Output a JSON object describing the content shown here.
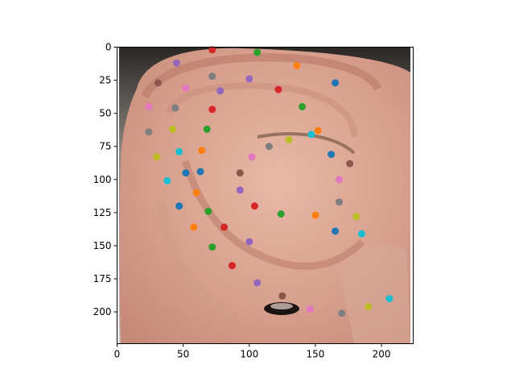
{
  "chart_data": {
    "type": "scatter",
    "background_image": "ear-closeup-photo",
    "xlim": [
      0,
      224
    ],
    "ylim": [
      224,
      0
    ],
    "y_inverted": true,
    "x_ticks": [
      0,
      50,
      100,
      150,
      200
    ],
    "y_ticks": [
      0,
      25,
      50,
      75,
      100,
      125,
      150,
      175,
      200
    ],
    "grid": false,
    "palette": [
      "#1f77b4",
      "#ff7f0e",
      "#2ca02c",
      "#d62728",
      "#9467bd",
      "#8c564b",
      "#e377c2",
      "#7f7f7f",
      "#bcbd22",
      "#17becf"
    ],
    "points": [
      {
        "x": 72,
        "y": 2,
        "color": "#d62728"
      },
      {
        "x": 106,
        "y": 4,
        "color": "#2ca02c"
      },
      {
        "x": 136,
        "y": 14,
        "color": "#ff7f0e"
      },
      {
        "x": 45,
        "y": 12,
        "color": "#9467bd"
      },
      {
        "x": 31,
        "y": 27,
        "color": "#8c564b"
      },
      {
        "x": 72,
        "y": 22,
        "color": "#7f7f7f"
      },
      {
        "x": 100,
        "y": 24,
        "color": "#9467bd"
      },
      {
        "x": 52,
        "y": 31,
        "color": "#e377c2"
      },
      {
        "x": 78,
        "y": 33,
        "color": "#9467bd"
      },
      {
        "x": 122,
        "y": 32,
        "color": "#d62728"
      },
      {
        "x": 165,
        "y": 27,
        "color": "#1f77b4"
      },
      {
        "x": 24,
        "y": 45,
        "color": "#e377c2"
      },
      {
        "x": 44,
        "y": 46,
        "color": "#7f7f7f"
      },
      {
        "x": 72,
        "y": 47,
        "color": "#d62728"
      },
      {
        "x": 140,
        "y": 45,
        "color": "#2ca02c"
      },
      {
        "x": 24,
        "y": 64,
        "color": "#7f7f7f"
      },
      {
        "x": 42,
        "y": 62,
        "color": "#bcbd22"
      },
      {
        "x": 68,
        "y": 62,
        "color": "#2ca02c"
      },
      {
        "x": 152,
        "y": 63,
        "color": "#ff7f0e"
      },
      {
        "x": 130,
        "y": 70,
        "color": "#bcbd22"
      },
      {
        "x": 147,
        "y": 66,
        "color": "#17becf"
      },
      {
        "x": 47,
        "y": 79,
        "color": "#17becf"
      },
      {
        "x": 64,
        "y": 78,
        "color": "#ff7f0e"
      },
      {
        "x": 115,
        "y": 75,
        "color": "#7f7f7f"
      },
      {
        "x": 30,
        "y": 83,
        "color": "#bcbd22"
      },
      {
        "x": 102,
        "y": 83,
        "color": "#e377c2"
      },
      {
        "x": 162,
        "y": 81,
        "color": "#1f77b4"
      },
      {
        "x": 176,
        "y": 88,
        "color": "#8c564b"
      },
      {
        "x": 52,
        "y": 95,
        "color": "#1f77b4"
      },
      {
        "x": 63,
        "y": 94,
        "color": "#1f77b4"
      },
      {
        "x": 93,
        "y": 95,
        "color": "#8c564b"
      },
      {
        "x": 38,
        "y": 101,
        "color": "#17becf"
      },
      {
        "x": 168,
        "y": 100,
        "color": "#e377c2"
      },
      {
        "x": 60,
        "y": 110,
        "color": "#ff7f0e"
      },
      {
        "x": 93,
        "y": 108,
        "color": "#9467bd"
      },
      {
        "x": 47,
        "y": 120,
        "color": "#1f77b4"
      },
      {
        "x": 69,
        "y": 124,
        "color": "#2ca02c"
      },
      {
        "x": 104,
        "y": 120,
        "color": "#d62728"
      },
      {
        "x": 168,
        "y": 117,
        "color": "#7f7f7f"
      },
      {
        "x": 124,
        "y": 126,
        "color": "#2ca02c"
      },
      {
        "x": 150,
        "y": 127,
        "color": "#ff7f0e"
      },
      {
        "x": 181,
        "y": 128,
        "color": "#bcbd22"
      },
      {
        "x": 58,
        "y": 136,
        "color": "#ff7f0e"
      },
      {
        "x": 81,
        "y": 136,
        "color": "#d62728"
      },
      {
        "x": 165,
        "y": 139,
        "color": "#1f77b4"
      },
      {
        "x": 185,
        "y": 141,
        "color": "#17becf"
      },
      {
        "x": 100,
        "y": 147,
        "color": "#9467bd"
      },
      {
        "x": 72,
        "y": 151,
        "color": "#2ca02c"
      },
      {
        "x": 87,
        "y": 165,
        "color": "#d62728"
      },
      {
        "x": 106,
        "y": 178,
        "color": "#9467bd"
      },
      {
        "x": 125,
        "y": 188,
        "color": "#8c564b"
      },
      {
        "x": 146,
        "y": 198,
        "color": "#e377c2"
      },
      {
        "x": 170,
        "y": 201,
        "color": "#7f7f7f"
      },
      {
        "x": 190,
        "y": 196,
        "color": "#bcbd22"
      },
      {
        "x": 206,
        "y": 190,
        "color": "#17becf"
      }
    ]
  }
}
